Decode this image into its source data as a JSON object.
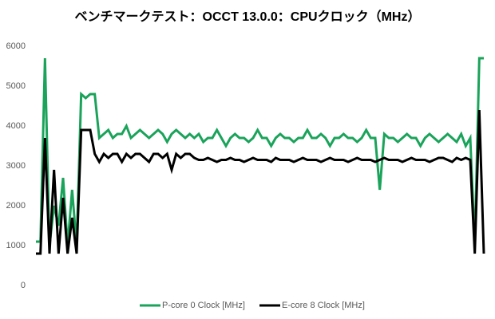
{
  "chart_data": {
    "type": "line",
    "title": "ベンチマークテスト：OCCT 13.0.0：CPUクロック（MHz）",
    "ylim": [
      0,
      6000
    ],
    "yticks": [
      0,
      1000,
      2000,
      3000,
      4000,
      5000,
      6000
    ],
    "grid": false,
    "legend": "bottom",
    "series": [
      {
        "name": "P-core 0 Clock [MHz]",
        "color": "#1aa35a",
        "values": [
          1100,
          1100,
          5700,
          1000,
          2000,
          1500,
          2700,
          1000,
          2400,
          1000,
          4800,
          4700,
          4800,
          4800,
          3700,
          3800,
          3900,
          3700,
          3800,
          3800,
          4000,
          3700,
          3800,
          3900,
          3800,
          3700,
          3800,
          3900,
          3800,
          3600,
          3800,
          3900,
          3800,
          3700,
          3800,
          3700,
          3800,
          3600,
          3700,
          3700,
          3900,
          3700,
          3500,
          3700,
          3800,
          3700,
          3700,
          3600,
          3700,
          3900,
          3700,
          3700,
          3500,
          3700,
          3800,
          3700,
          3700,
          3600,
          3700,
          3700,
          3900,
          3700,
          3700,
          3800,
          3700,
          3500,
          3700,
          3700,
          3800,
          3700,
          3700,
          3600,
          3700,
          3900,
          3700,
          3700,
          2400,
          3800,
          3700,
          3700,
          3600,
          3700,
          3800,
          3700,
          3700,
          3500,
          3700,
          3800,
          3700,
          3600,
          3700,
          3800,
          3700,
          3600,
          3800,
          3500,
          3700,
          1000,
          5700,
          5700
        ]
      },
      {
        "name": "E-core 8 Clock [MHz]",
        "color": "#000000",
        "values": [
          800,
          800,
          3700,
          800,
          2900,
          800,
          2200,
          800,
          1700,
          800,
          3900,
          3900,
          3900,
          3300,
          3100,
          3300,
          3200,
          3300,
          3300,
          3100,
          3300,
          3200,
          3300,
          3300,
          3200,
          3100,
          3300,
          3300,
          3200,
          3300,
          2900,
          3300,
          3200,
          3300,
          3300,
          3200,
          3150,
          3150,
          3200,
          3150,
          3100,
          3150,
          3150,
          3200,
          3150,
          3150,
          3100,
          3150,
          3200,
          3150,
          3150,
          3150,
          3100,
          3200,
          3150,
          3150,
          3150,
          3100,
          3150,
          3200,
          3150,
          3150,
          3150,
          3100,
          3150,
          3200,
          3150,
          3150,
          3150,
          3100,
          3150,
          3200,
          3150,
          3150,
          3150,
          3100,
          3150,
          3200,
          3150,
          3150,
          3150,
          3100,
          3150,
          3200,
          3150,
          3150,
          3150,
          3100,
          3150,
          3200,
          3200,
          3150,
          3100,
          3200,
          3150,
          3200,
          3150,
          800,
          4400,
          800
        ]
      }
    ]
  }
}
